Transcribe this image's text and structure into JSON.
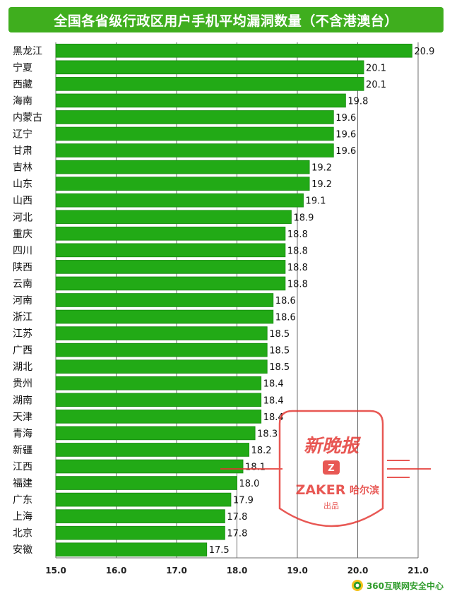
{
  "title": "全国各省级行政区用户手机平均漏洞数量（不含港澳台）",
  "colors": {
    "bar": "#22aa16",
    "bar_stroke": "#178a10",
    "title_bg": "#3fae1e",
    "grid": "#6f6f6f",
    "watermark": "#e3342f"
  },
  "chart_data": {
    "type": "bar",
    "orientation": "horizontal",
    "categories": [
      "黑龙江",
      "宁夏",
      "西藏",
      "海南",
      "内蒙古",
      "辽宁",
      "甘肃",
      "吉林",
      "山东",
      "山西",
      "河北",
      "重庆",
      "四川",
      "陕西",
      "云南",
      "河南",
      "浙江",
      "江苏",
      "广西",
      "湖北",
      "贵州",
      "湖南",
      "天津",
      "青海",
      "新疆",
      "江西",
      "福建",
      "广东",
      "上海",
      "北京",
      "安徽"
    ],
    "values": [
      20.9,
      20.1,
      20.1,
      19.8,
      19.6,
      19.6,
      19.6,
      19.2,
      19.2,
      19.1,
      18.9,
      18.8,
      18.8,
      18.8,
      18.8,
      18.6,
      18.6,
      18.5,
      18.5,
      18.5,
      18.4,
      18.4,
      18.4,
      18.3,
      18.2,
      18.1,
      18.0,
      17.9,
      17.8,
      17.8,
      17.5
    ],
    "value_labels": [
      "20.9",
      "20.1",
      "20.1",
      "19.8",
      "19.6",
      "19.6",
      "19.6",
      "19.2",
      "19.2",
      "19.1",
      "18.9",
      "18.8",
      "18.8",
      "18.8",
      "18.8",
      "18.6",
      "18.6",
      "18.5",
      "18.5",
      "18.5",
      "18.4",
      "18.4",
      "18.4",
      "18.3",
      "18.2",
      "18.1",
      "18.0",
      "17.9",
      "17.8",
      "17.8",
      "17.5"
    ],
    "xlim": [
      15.0,
      21.0
    ],
    "xticks": [
      15.0,
      16.0,
      17.0,
      18.0,
      19.0,
      20.0,
      21.0
    ],
    "xtick_labels": [
      "15.0",
      "16.0",
      "17.0",
      "18.0",
      "19.0",
      "20.0",
      "21.0"
    ],
    "grid": true,
    "legend": "none"
  },
  "watermark": {
    "paper_name": "新晚报",
    "zaker_letter": "Z",
    "brand": "ZAKER",
    "city": "哈尔滨",
    "tagline": "出品"
  },
  "footer": {
    "logo_text": "360互联网安全中心",
    "logo_icon": "shield-360-icon"
  }
}
